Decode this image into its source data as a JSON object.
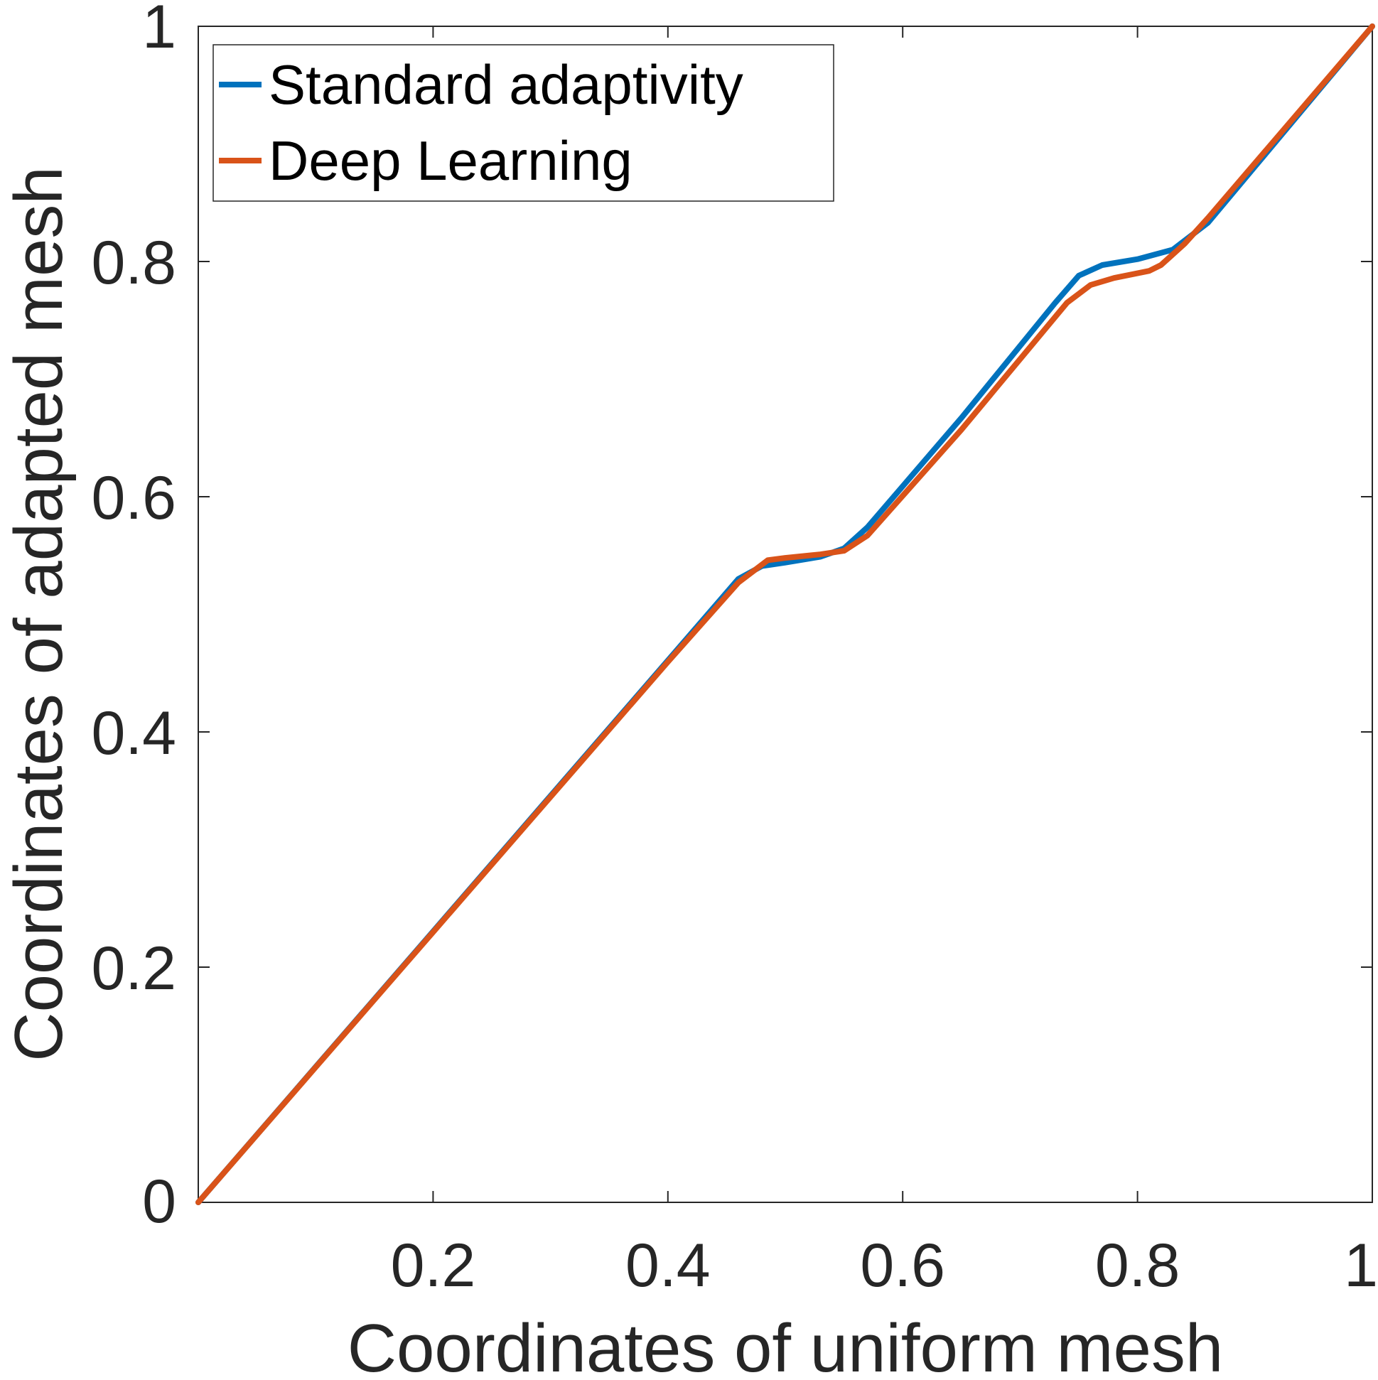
{
  "chart_data": {
    "type": "line",
    "title": "",
    "xlabel": "Coordinates of uniform mesh",
    "ylabel": "Coordinates of adapted mesh",
    "xlim": [
      0,
      1
    ],
    "ylim": [
      0,
      1
    ],
    "xticks": [
      0.2,
      0.4,
      0.6,
      0.8,
      1
    ],
    "xtick_labels": [
      "0.2",
      "0.4",
      "0.6",
      "0.8",
      "1"
    ],
    "yticks": [
      0,
      0.2,
      0.4,
      0.6,
      0.8,
      1
    ],
    "ytick_labels": [
      "0",
      "0.2",
      "0.4",
      "0.6",
      "0.8",
      "1"
    ],
    "grid": false,
    "legend_position": "top-left",
    "series": [
      {
        "name": "Standard adaptivity",
        "color": "#0072BD",
        "x": [
          0,
          0.1,
          0.2,
          0.3,
          0.4,
          0.46,
          0.48,
          0.5,
          0.53,
          0.55,
          0.57,
          0.65,
          0.73,
          0.75,
          0.77,
          0.8,
          0.83,
          0.86,
          1.0
        ],
        "y": [
          0,
          0.1152,
          0.2304,
          0.3456,
          0.4608,
          0.53,
          0.541,
          0.544,
          0.549,
          0.556,
          0.574,
          0.667,
          0.765,
          0.788,
          0.797,
          0.802,
          0.81,
          0.833,
          1.0
        ]
      },
      {
        "name": "Deep Learning",
        "color": "#D95319",
        "x": [
          0,
          0.1,
          0.2,
          0.3,
          0.4,
          0.46,
          0.485,
          0.5,
          0.53,
          0.55,
          0.57,
          0.65,
          0.74,
          0.76,
          0.78,
          0.81,
          0.82,
          0.84,
          0.86,
          1.0
        ],
        "y": [
          0,
          0.1149,
          0.2298,
          0.3447,
          0.4596,
          0.527,
          0.546,
          0.548,
          0.551,
          0.554,
          0.567,
          0.657,
          0.765,
          0.78,
          0.786,
          0.792,
          0.797,
          0.815,
          0.837,
          1.0
        ]
      }
    ]
  }
}
